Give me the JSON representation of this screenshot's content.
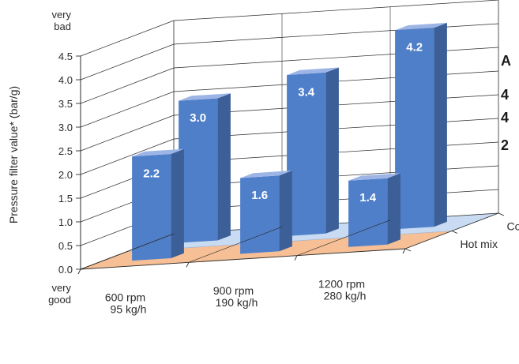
{
  "chart_data": {
    "type": "bar",
    "title": "",
    "ylabel": "Pressure filter value* (bar/g)",
    "y_ticks": [
      "0.0",
      "0.5",
      "1.0",
      "1.5",
      "2.0",
      "2.5",
      "3.0",
      "3.5",
      "4.0",
      "4.5"
    ],
    "ylim": [
      0,
      4.5
    ],
    "y_top_label": [
      "very",
      "bad"
    ],
    "y_bottom_label": [
      "very",
      "good"
    ],
    "categories": [
      [
        "600 rpm",
        "95 kg/h"
      ],
      [
        "900 rpm",
        "190 kg/h"
      ],
      [
        "1200 rpm",
        "280 kg/h"
      ]
    ],
    "series": [
      {
        "name": "Hot mix",
        "values": [
          2.2,
          1.6,
          1.4
        ],
        "value_labels": [
          "2.2",
          "1.6",
          "1.4"
        ]
      },
      {
        "name": "Cold mix",
        "values": [
          3.0,
          3.4,
          4.2
        ],
        "value_labels": [
          "3.0",
          "3.4",
          "4.2"
        ]
      }
    ],
    "grid": true,
    "colors": {
      "bar_front": "#4f7fc9",
      "bar_top": "#9db5e6",
      "bar_side": "#3c5f98",
      "hot_floor": "#f6bf95",
      "cold_floor": "#c8dbf2",
      "grid": "#2b2b2b"
    },
    "cut_off_text": [
      "A",
      "4",
      "4",
      "2"
    ]
  }
}
